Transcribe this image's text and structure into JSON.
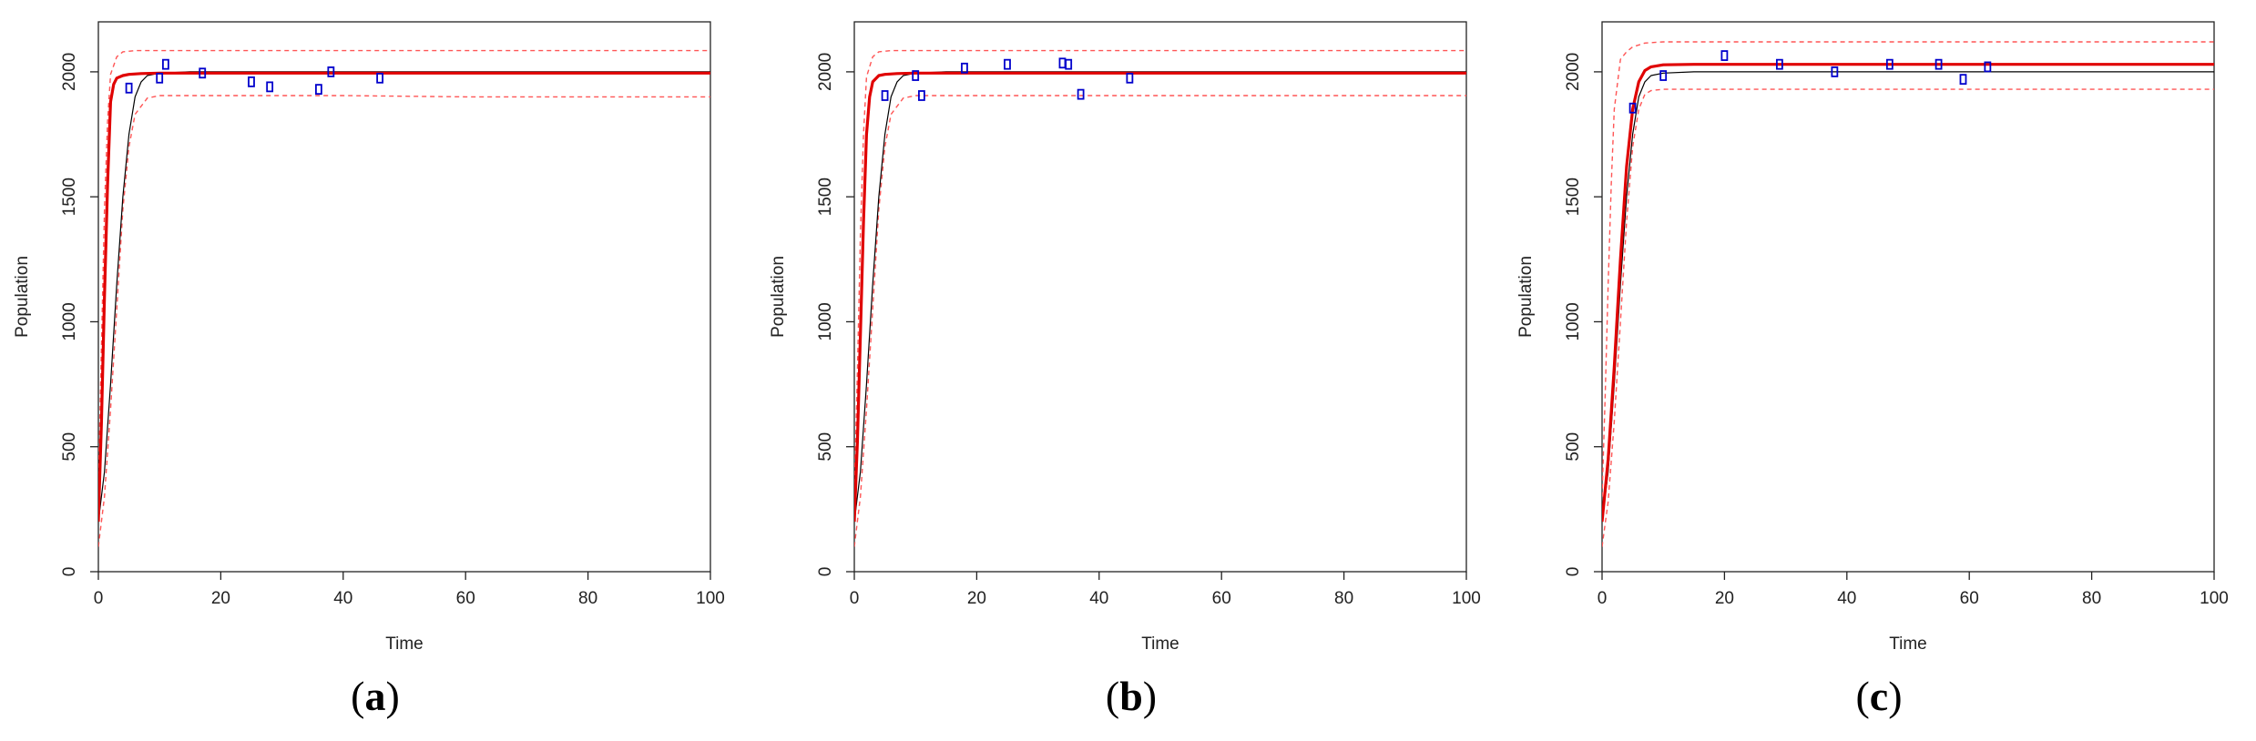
{
  "chart_data": [
    {
      "type": "line",
      "panel_label": "a",
      "xlabel": "Time",
      "ylabel": "Population",
      "xlim": [
        0,
        100
      ],
      "ylim": [
        0,
        2200
      ],
      "x_ticks": [
        0,
        20,
        40,
        60,
        80,
        100
      ],
      "y_ticks": [
        0,
        500,
        1000,
        1500,
        2000
      ],
      "colors": {
        "true_curve": "#000000",
        "fitted_curve": "#e00000",
        "bands": "#ff5555",
        "points": "#0000cc"
      },
      "series": [
        {
          "role": "true_curve",
          "style": "solid thin black",
          "x": [
            0,
            1,
            2,
            3,
            4,
            5,
            6,
            7,
            8,
            10,
            15,
            20,
            40,
            60,
            80,
            100
          ],
          "y": [
            200,
            400,
            750,
            1150,
            1500,
            1750,
            1900,
            1960,
            1985,
            1995,
            2000,
            2000,
            2000,
            2000,
            2000,
            2000
          ]
        },
        {
          "role": "fitted_curve",
          "style": "solid thick red",
          "x": [
            0,
            0.5,
            1,
            1.5,
            2,
            2.5,
            3,
            4,
            5,
            7,
            10,
            20,
            40,
            60,
            80,
            100
          ],
          "y": [
            200,
            600,
            1100,
            1550,
            1880,
            1950,
            1975,
            1985,
            1990,
            1993,
            1995,
            1995,
            1995,
            1995,
            1995,
            1995
          ]
        },
        {
          "role": "upper_band",
          "style": "dashed red",
          "x": [
            0,
            0.5,
            1,
            1.5,
            2,
            3,
            4,
            6,
            10,
            20,
            40,
            60,
            80,
            100
          ],
          "y": [
            350,
            900,
            1450,
            1800,
            1990,
            2060,
            2080,
            2085,
            2085,
            2085,
            2085,
            2085,
            2085,
            2085
          ]
        },
        {
          "role": "lower_band",
          "style": "dashed red",
          "x": [
            0,
            1,
            2,
            3,
            4,
            5,
            6,
            8,
            10,
            20,
            40,
            60,
            80,
            100
          ],
          "y": [
            100,
            300,
            650,
            1050,
            1450,
            1700,
            1830,
            1895,
            1905,
            1905,
            1905,
            1900,
            1900,
            1900
          ]
        },
        {
          "role": "observations",
          "style": "blue squares",
          "x": [
            5,
            10,
            11,
            17,
            25,
            28,
            36,
            38,
            46
          ],
          "y": [
            1935,
            1975,
            2030,
            1995,
            1960,
            1940,
            1930,
            2000,
            1975
          ]
        }
      ]
    },
    {
      "type": "line",
      "panel_label": "b",
      "xlabel": "Time",
      "ylabel": "Population",
      "xlim": [
        0,
        100
      ],
      "ylim": [
        0,
        2200
      ],
      "x_ticks": [
        0,
        20,
        40,
        60,
        80,
        100
      ],
      "y_ticks": [
        0,
        500,
        1000,
        1500,
        2000
      ],
      "colors": {
        "true_curve": "#000000",
        "fitted_curve": "#e00000",
        "bands": "#ff5555",
        "points": "#0000cc"
      },
      "series": [
        {
          "role": "true_curve",
          "style": "solid thin black",
          "x": [
            0,
            1,
            2,
            3,
            4,
            5,
            6,
            7,
            8,
            10,
            15,
            20,
            40,
            60,
            80,
            100
          ],
          "y": [
            200,
            400,
            750,
            1150,
            1500,
            1750,
            1900,
            1960,
            1985,
            1995,
            2000,
            2000,
            2000,
            2000,
            2000,
            2000
          ]
        },
        {
          "role": "fitted_curve",
          "style": "solid thick red",
          "x": [
            0,
            0.5,
            1,
            1.5,
            2,
            2.5,
            3,
            4,
            5,
            7,
            10,
            20,
            40,
            60,
            80,
            100
          ],
          "y": [
            200,
            520,
            950,
            1400,
            1750,
            1900,
            1960,
            1985,
            1990,
            1993,
            1995,
            1995,
            1995,
            1995,
            1995,
            1995
          ]
        },
        {
          "role": "upper_band",
          "style": "dashed red",
          "x": [
            0,
            0.5,
            1,
            1.5,
            2,
            3,
            4,
            6,
            10,
            20,
            40,
            60,
            80,
            100
          ],
          "y": [
            320,
            800,
            1350,
            1750,
            1980,
            2060,
            2080,
            2085,
            2085,
            2085,
            2085,
            2085,
            2085,
            2085
          ]
        },
        {
          "role": "lower_band",
          "style": "dashed red",
          "x": [
            0,
            1,
            2,
            3,
            4,
            5,
            6,
            8,
            10,
            20,
            40,
            60,
            80,
            100
          ],
          "y": [
            100,
            300,
            650,
            1050,
            1450,
            1700,
            1830,
            1895,
            1905,
            1905,
            1905,
            1905,
            1905,
            1905
          ]
        },
        {
          "role": "observations",
          "style": "blue squares",
          "x": [
            5,
            10,
            11,
            18,
            25,
            34,
            35,
            37,
            45
          ],
          "y": [
            1905,
            1985,
            1905,
            2015,
            2030,
            2035,
            2030,
            1910,
            1975
          ]
        }
      ]
    },
    {
      "type": "line",
      "panel_label": "c",
      "xlabel": "Time",
      "ylabel": "Population",
      "xlim": [
        0,
        100
      ],
      "ylim": [
        0,
        2200
      ],
      "x_ticks": [
        0,
        20,
        40,
        60,
        80,
        100
      ],
      "y_ticks": [
        0,
        500,
        1000,
        1500,
        2000
      ],
      "colors": {
        "true_curve": "#000000",
        "fitted_curve": "#e00000",
        "bands": "#ff5555",
        "points": "#0000cc"
      },
      "series": [
        {
          "role": "true_curve",
          "style": "solid thin black",
          "x": [
            0,
            1,
            2,
            3,
            4,
            5,
            6,
            7,
            8,
            10,
            15,
            20,
            40,
            60,
            80,
            100
          ],
          "y": [
            200,
            400,
            750,
            1150,
            1500,
            1750,
            1900,
            1960,
            1985,
            1995,
            2000,
            2000,
            2000,
            2000,
            2000,
            2000
          ]
        },
        {
          "role": "fitted_curve",
          "style": "solid thick red",
          "x": [
            0,
            1,
            2,
            3,
            4,
            5,
            6,
            7,
            8,
            10,
            15,
            20,
            40,
            60,
            80,
            100
          ],
          "y": [
            200,
            450,
            820,
            1250,
            1620,
            1850,
            1960,
            2005,
            2020,
            2028,
            2030,
            2030,
            2030,
            2030,
            2030,
            2030
          ]
        },
        {
          "role": "upper_band",
          "style": "dashed red",
          "x": [
            0,
            0.5,
            1,
            1.5,
            2,
            3,
            4,
            5,
            7,
            10,
            20,
            40,
            60,
            80,
            100
          ],
          "y": [
            300,
            700,
            1150,
            1550,
            1850,
            2050,
            2080,
            2100,
            2115,
            2120,
            2120,
            2120,
            2120,
            2120,
            2120
          ]
        },
        {
          "role": "lower_band",
          "style": "dashed red",
          "x": [
            0,
            1,
            2,
            3,
            4,
            5,
            6,
            7,
            8,
            10,
            20,
            40,
            60,
            80,
            100
          ],
          "y": [
            100,
            280,
            600,
            1000,
            1400,
            1700,
            1850,
            1910,
            1925,
            1930,
            1930,
            1930,
            1930,
            1930,
            1930
          ]
        },
        {
          "role": "observations",
          "style": "blue squares",
          "x": [
            5,
            10,
            20,
            29,
            38,
            47,
            55,
            59,
            63
          ],
          "y": [
            1855,
            1985,
            2065,
            2030,
            2000,
            2030,
            2030,
            1970,
            2020
          ]
        }
      ]
    }
  ]
}
